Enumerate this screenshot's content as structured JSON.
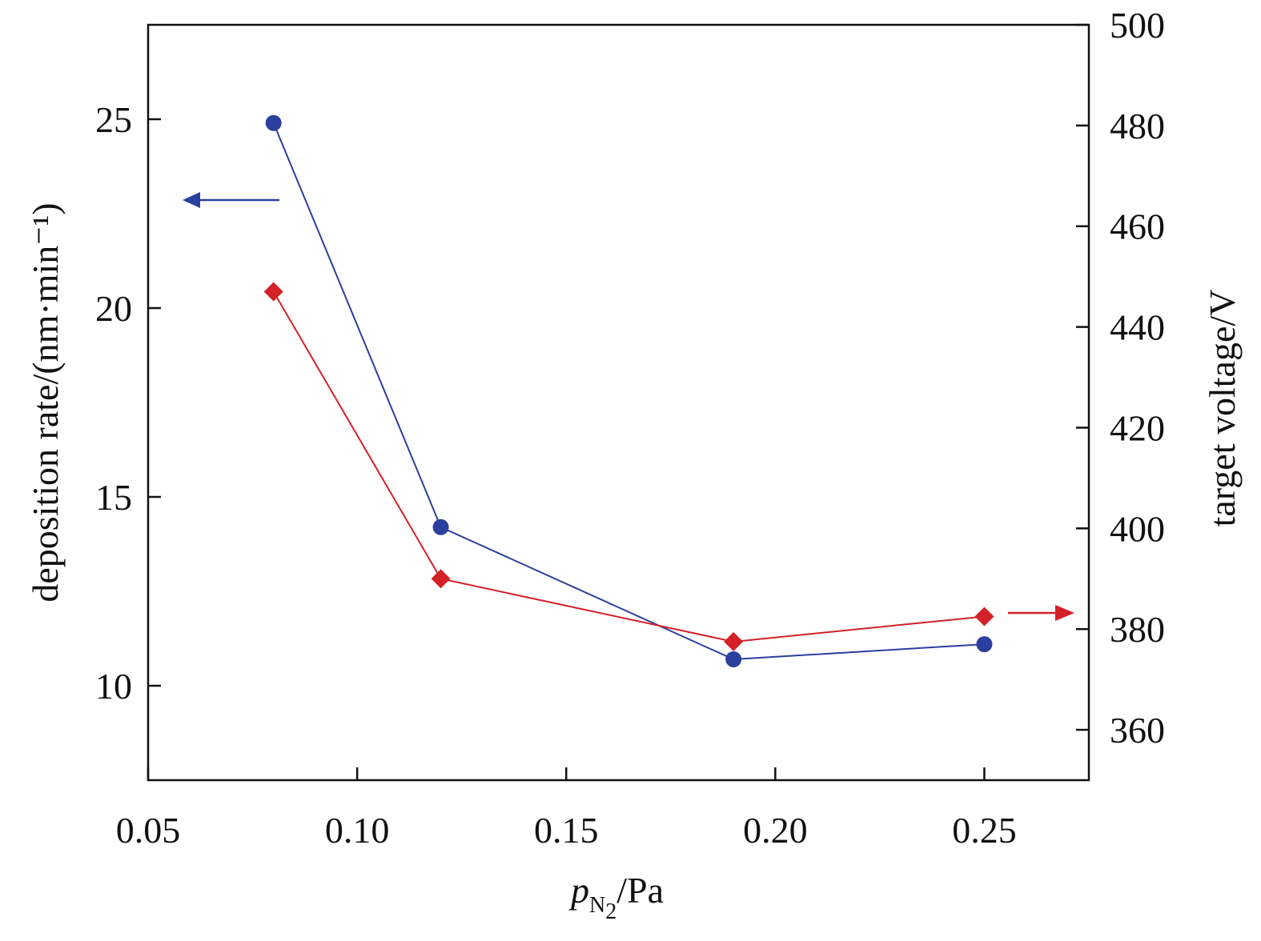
{
  "chart_data": {
    "type": "line",
    "x": [
      0.08,
      0.12,
      0.19,
      0.25
    ],
    "series": [
      {
        "axis": "left",
        "marker": "circle",
        "color": "#2b3f9e",
        "values": [
          24.9,
          14.2,
          10.7,
          11.1
        ]
      },
      {
        "axis": "right",
        "marker": "diamond",
        "color": "#d42027",
        "values": [
          447,
          390,
          377.5,
          382.5
        ]
      }
    ],
    "xlim": [
      0.05,
      0.275
    ],
    "xticks": [
      "0.05",
      "0.10",
      "0.15",
      "0.20",
      "0.25"
    ],
    "ylim_left": [
      7.5,
      27.5
    ],
    "yticks_left": [
      "10",
      "15",
      "20",
      "25"
    ],
    "ylim_right": [
      350,
      500
    ],
    "yticks_right": [
      "360",
      "380",
      "400",
      "420",
      "440",
      "460",
      "480",
      "500"
    ],
    "xlabel": {
      "main": "p",
      "sub": "N",
      "subsub": "2",
      "unit": "/Pa"
    },
    "ylabel_left": "deposition rate/(nm·min⁻¹)",
    "ylabel_right": "target voltage/V",
    "grid": false,
    "legend": "none; arrows point each series to its axis"
  }
}
